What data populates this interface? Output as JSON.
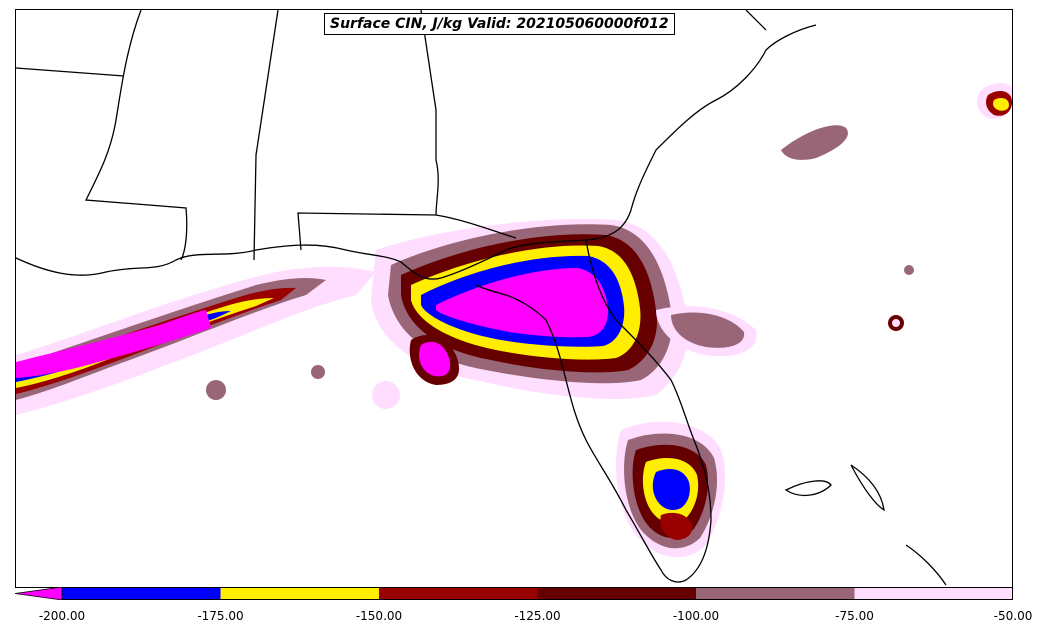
{
  "map": {
    "title": "Surface CIN, J/kg Valid: 202105060000f012",
    "field": "Surface CIN",
    "units": "J/kg",
    "region": "Southeastern US / Gulf of Mexico / Florida"
  },
  "colorbar": {
    "min": -200,
    "max": -50,
    "extend": "min",
    "levels": [
      {
        "from": -200,
        "to": -175,
        "color": "#0000ff"
      },
      {
        "from": -175,
        "to": -150,
        "color": "#ffee00"
      },
      {
        "from": -150,
        "to": -125,
        "color": "#990000"
      },
      {
        "from": -125,
        "to": -100,
        "color": "#660000"
      },
      {
        "from": -100,
        "to": -75,
        "color": "#996677"
      },
      {
        "from": -75,
        "to": -50,
        "color": "#ffddff"
      }
    ],
    "under_color": "#ff00ff",
    "ticks": [
      "-200.00",
      "-175.00",
      "-150.00",
      "-125.00",
      "-100.00",
      "-75.00",
      "-50.00"
    ]
  }
}
